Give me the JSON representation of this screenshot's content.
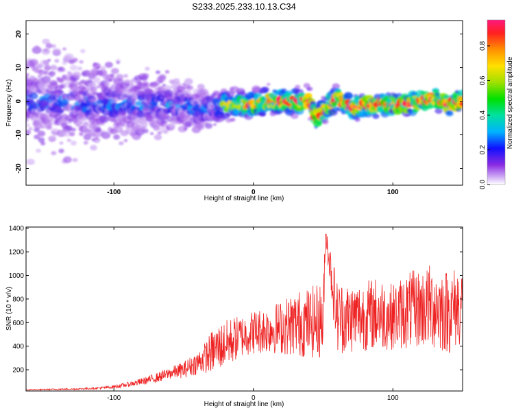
{
  "title": "S233.2025.233.10.13.C34",
  "chart_data": [
    {
      "type": "heatmap",
      "xlabel": "Height of straight line (km)",
      "ylabel": "Frequency (Hz)",
      "xlim": [
        -163,
        150
      ],
      "ylim": [
        -25,
        24
      ],
      "xticks": [
        -100,
        0,
        100
      ],
      "yticks": [
        -20,
        -10,
        0,
        10,
        20
      ],
      "colorbar": {
        "label": "Normalized spectral amplitude",
        "range": [
          0,
          0.95
        ],
        "ticks": [
          "0.0",
          "0.2",
          "0.4",
          "0.6",
          "0.8"
        ],
        "tick_values": [
          0.0,
          0.2,
          0.4,
          0.6,
          0.8
        ]
      },
      "ridge": {
        "x": [
          -163,
          -140,
          -120,
          -100,
          -80,
          -60,
          -40,
          -30,
          -20,
          -10,
          0,
          10,
          20,
          30,
          40,
          45,
          50,
          60,
          70,
          80,
          90,
          100,
          110,
          120,
          130,
          140,
          150
        ],
        "freq": [
          0,
          0,
          -1,
          -1,
          -1,
          -1,
          -2,
          -2,
          -1,
          -1,
          -1,
          0,
          0,
          0,
          0,
          -5,
          -3,
          1,
          -2,
          -1,
          -1,
          -1,
          -1,
          0,
          1,
          -1,
          0
        ]
      }
    },
    {
      "type": "line",
      "xlabel": "Height of straight line (km)",
      "ylabel": "SNR (10 * v/v)",
      "xlim": [
        -163,
        150
      ],
      "ylim": [
        20,
        1410
      ],
      "xticks": [
        -100,
        0,
        100
      ],
      "yticks": [
        200,
        400,
        600,
        800,
        1000,
        1200,
        1400
      ],
      "color": "#ee2222",
      "series": [
        {
          "name": "SNR",
          "x": [
            -163,
            -150,
            -140,
            -130,
            -120,
            -110,
            -100,
            -90,
            -80,
            -70,
            -60,
            -50,
            -40,
            -35,
            -30,
            -25,
            -20,
            -15,
            -10,
            -5,
            0,
            10,
            20,
            30,
            40,
            50,
            52,
            60,
            70,
            80,
            90,
            100,
            110,
            120,
            130,
            140,
            150
          ],
          "values": [
            30,
            32,
            35,
            36,
            40,
            45,
            55,
            75,
            100,
            130,
            170,
            200,
            260,
            300,
            350,
            390,
            420,
            450,
            480,
            500,
            520,
            540,
            560,
            590,
            600,
            620,
            1350,
            650,
            640,
            660,
            680,
            650,
            700,
            720,
            740,
            690,
            760
          ],
          "spread": [
            5,
            5,
            6,
            6,
            8,
            10,
            15,
            20,
            30,
            40,
            50,
            70,
            100,
            130,
            180,
            200,
            200,
            200,
            180,
            180,
            190,
            200,
            230,
            280,
            300,
            330,
            100,
            320,
            300,
            300,
            320,
            280,
            330,
            340,
            380,
            360,
            350
          ]
        }
      ]
    }
  ]
}
